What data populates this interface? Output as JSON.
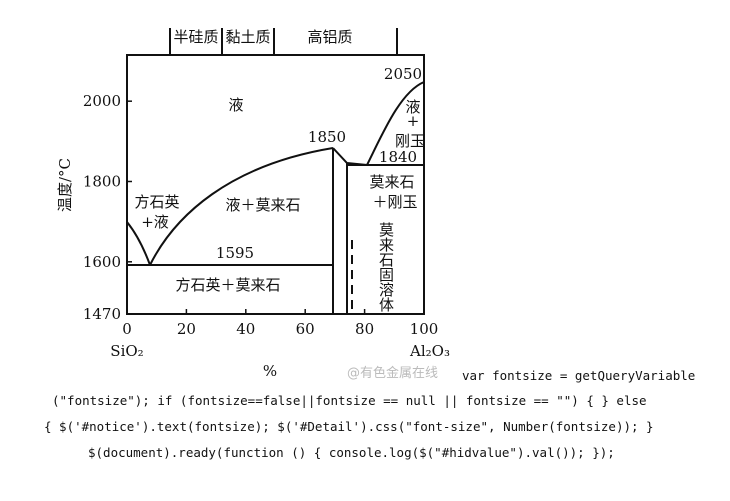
{
  "diagram": {
    "top_labels": [
      "半硅质",
      "黏土质",
      "高铝质"
    ],
    "y_axis_label": "温度/°C",
    "x_axis_label": "%",
    "x_left": "SiO₂",
    "x_right": "Al₂O₃",
    "xlim": [
      0,
      100
    ],
    "xticks": [
      0,
      20,
      40,
      60,
      80,
      100
    ],
    "ylim": [
      1470,
      2115
    ],
    "yticks": [
      1470,
      1600,
      1800,
      2000
    ],
    "regions": [
      "液",
      "方石英",
      "+液",
      "液＋莫来石",
      "方石英＋莫来石",
      "液",
      "+",
      "刚玉",
      "莫来石",
      "＋刚玉",
      "莫来石固溶体"
    ],
    "points": [
      2050,
      1850,
      1840,
      1595
    ]
  },
  "watermark": "@有色金属在线",
  "code_lines": [
    "var fontsize = getQueryVariable",
    "(\"fontsize\"); if (fontsize==false||fontsize == null || fontsize == \"\") { } else",
    "{ $('#notice').text(fontsize); $('#Detail').css(\"font-size\", Number(fontsize)); }",
    "$(document).ready(function () { console.log($(\"#hidvalue\").val()); });"
  ]
}
